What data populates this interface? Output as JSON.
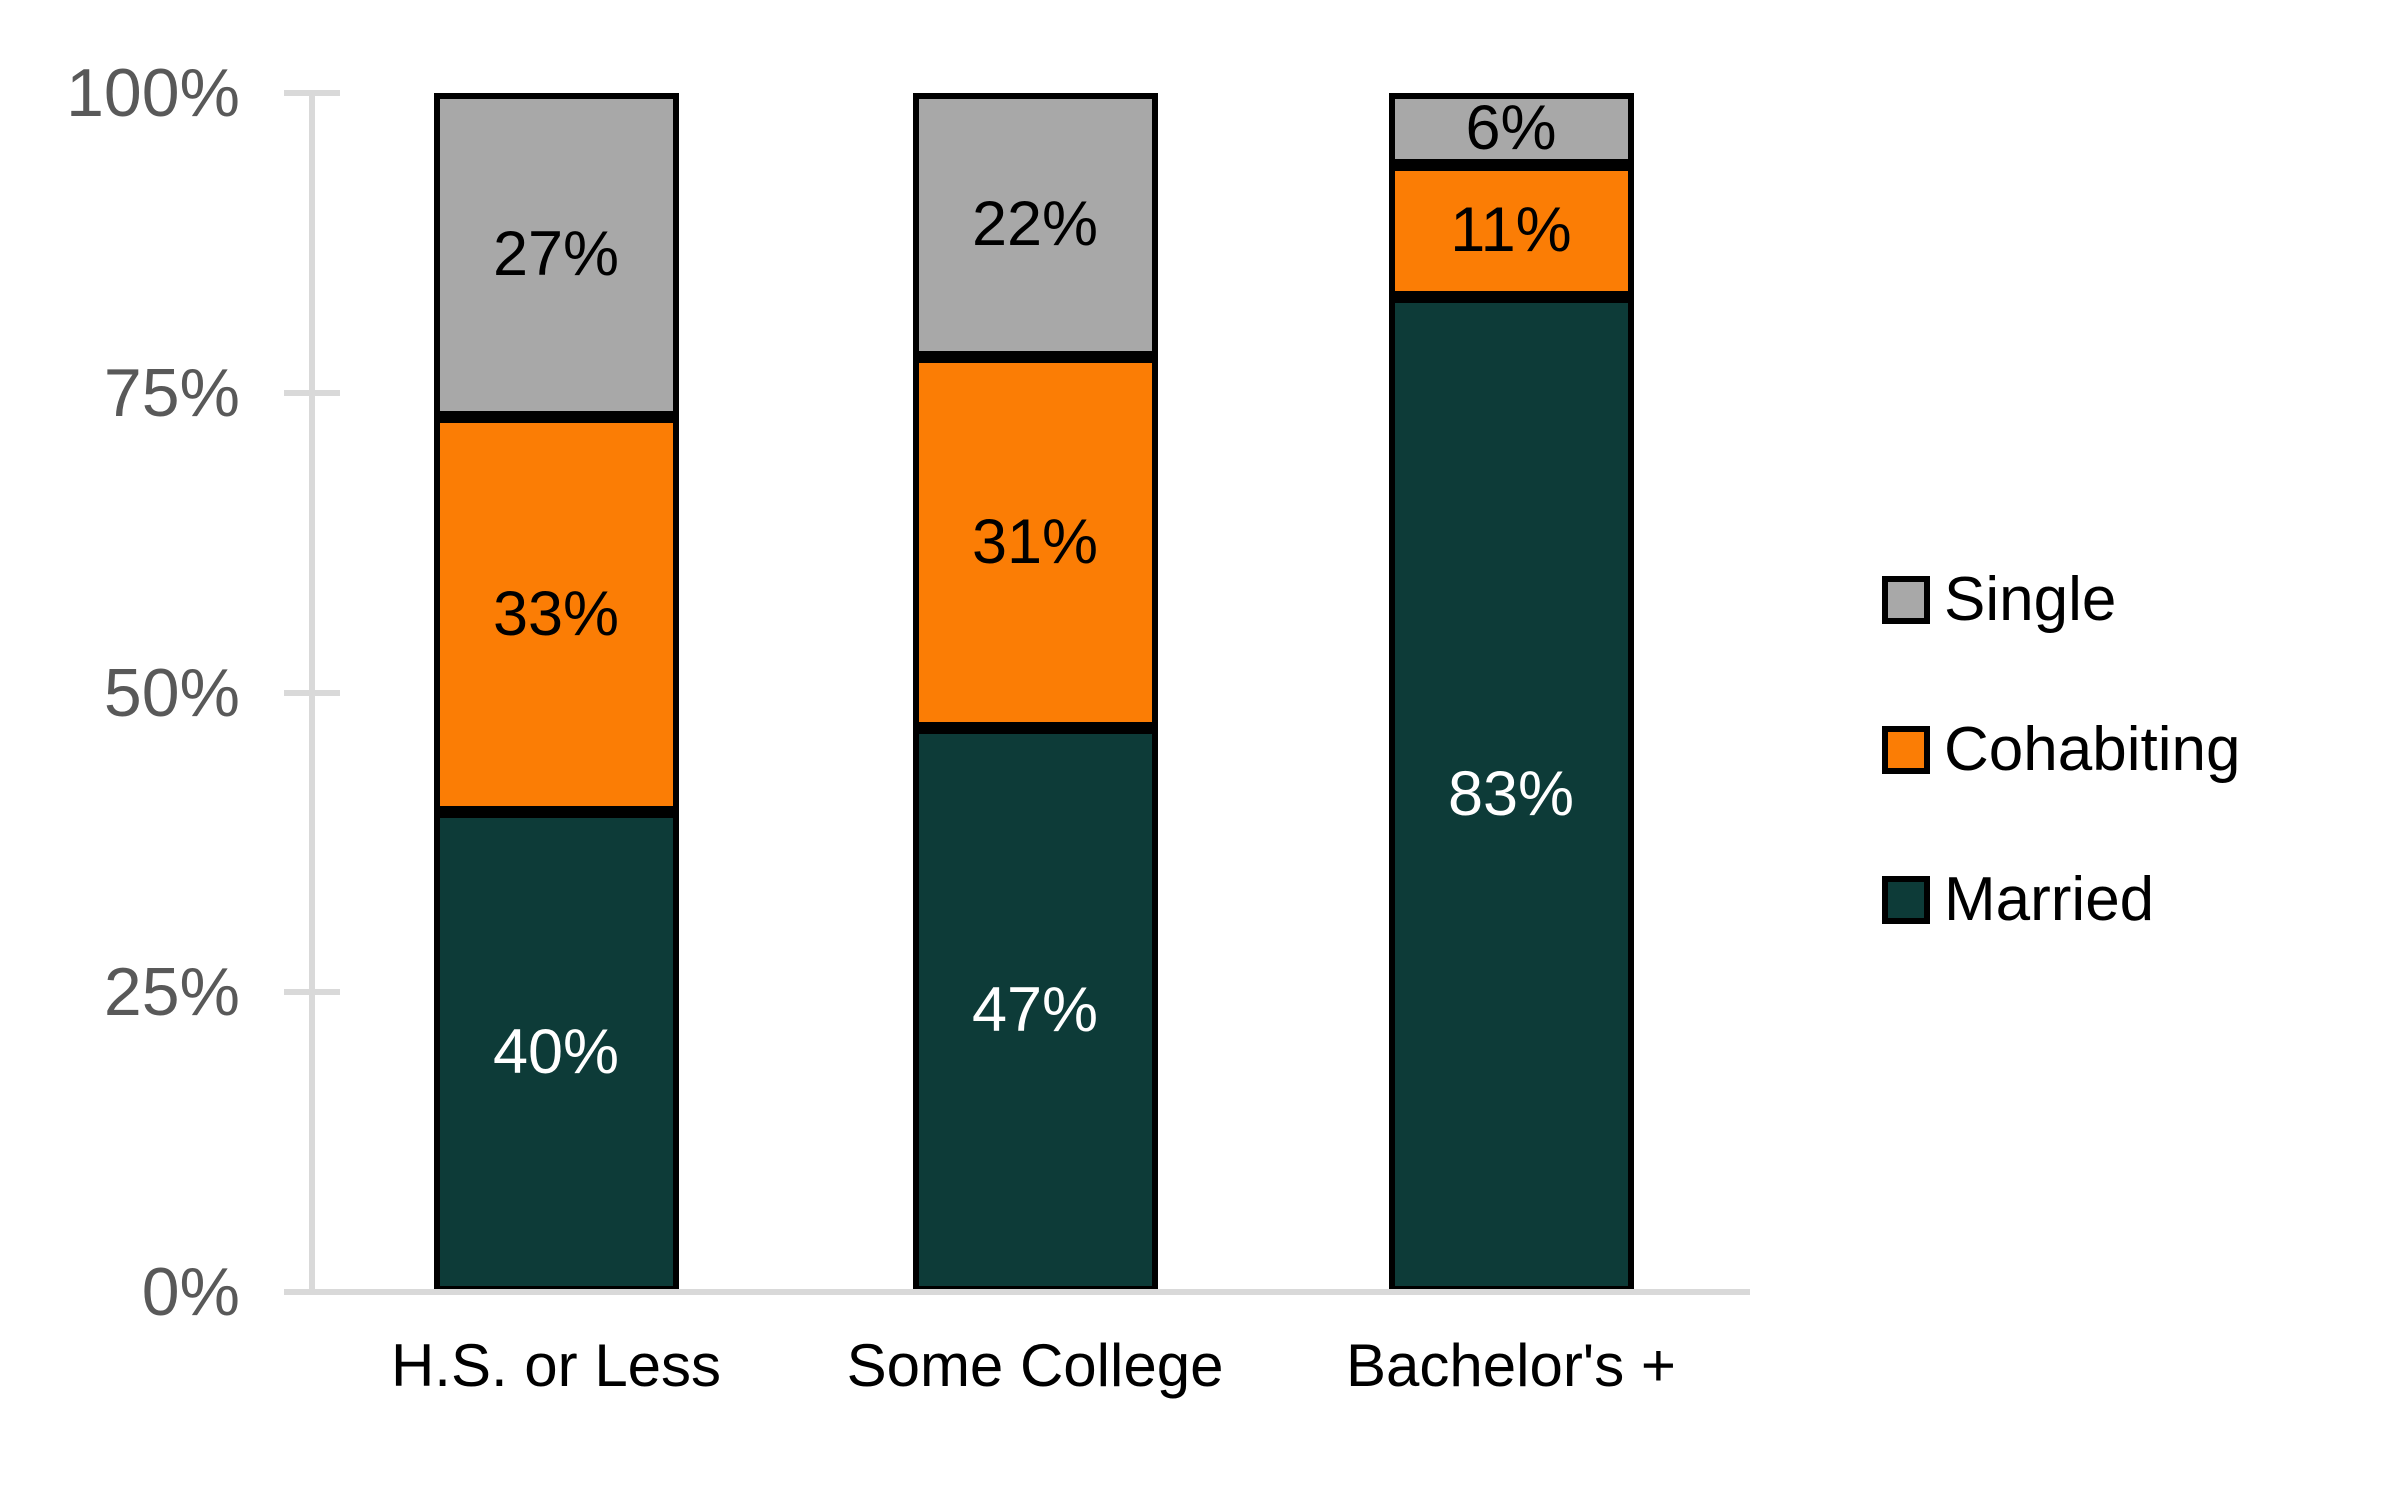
{
  "chart_data": {
    "type": "bar",
    "stacked": true,
    "title": "",
    "categories": [
      "H.S. or Less",
      "Some College",
      "Bachelor's +"
    ],
    "series": [
      {
        "name": "Married",
        "values": [
          40,
          47,
          83
        ],
        "color": "#0d3b38",
        "label_color": "#ffffff"
      },
      {
        "name": "Cohabiting",
        "values": [
          33,
          31,
          11
        ],
        "color": "#fb7d05",
        "label_color": "#000000"
      },
      {
        "name": "Single",
        "values": [
          27,
          22,
          6
        ],
        "color": "#a8a8a8",
        "label_color": "#000000"
      }
    ],
    "value_suffix": "%",
    "y_axis": {
      "tick_labels": [
        "0%",
        "25%",
        "50%",
        "75%",
        "100%"
      ],
      "tick_values": [
        0,
        25,
        50,
        75,
        100
      ],
      "range": [
        0,
        100
      ]
    },
    "legend": {
      "position": "right",
      "items": [
        "Single",
        "Cohabiting",
        "Married"
      ]
    },
    "colors": {
      "axis_line": "#d9d9d9",
      "tick_label_text": "#595959",
      "segment_border": "#000000",
      "background": "#ffffff"
    },
    "grid": false
  }
}
